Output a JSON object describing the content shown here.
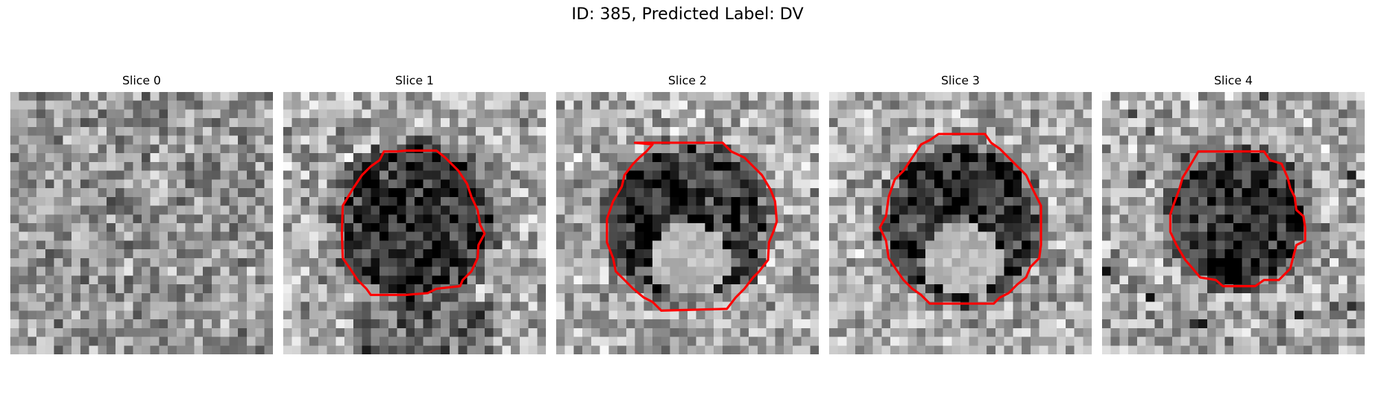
{
  "figure": {
    "title": "ID: 385, Predicted Label: DV"
  },
  "slices": [
    {
      "label": "Slice 0",
      "has_contour": false,
      "dark_blob": null,
      "bright_core": null,
      "bottom_dark": false,
      "dark_spots": false
    },
    {
      "label": "Slice 1",
      "has_contour": true,
      "dark_blob": "round",
      "bright_core": null,
      "bottom_dark": true,
      "dark_spots": false
    },
    {
      "label": "Slice 2",
      "has_contour": true,
      "dark_blob": "ring",
      "bright_core": "lower",
      "bottom_dark": false,
      "dark_spots": false
    },
    {
      "label": "Slice 3",
      "has_contour": true,
      "dark_blob": "ring",
      "bright_core": "lower",
      "bottom_dark": false,
      "dark_spots": false
    },
    {
      "label": "Slice 4",
      "has_contour": true,
      "dark_blob": "round",
      "bright_core": null,
      "bottom_dark": false,
      "dark_spots": true
    }
  ],
  "colors": {
    "contour": "#ff0000",
    "colormap": "grayscale"
  }
}
